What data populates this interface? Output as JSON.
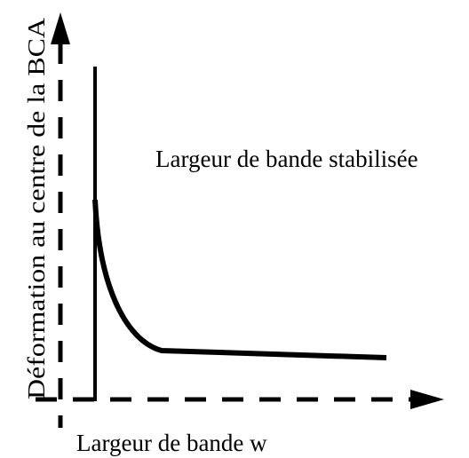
{
  "diagram": {
    "y_axis_label": "Déformation au centre de la BCA",
    "x_axis_label": "Largeur de bande w",
    "annotation": "Largeur de bande stabilisée"
  }
}
